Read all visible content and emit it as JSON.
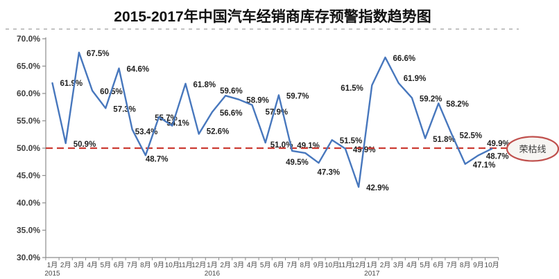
{
  "title": "2015-2017年中国汽车经销商库存预警指数趋势图",
  "chart_data": {
    "type": "line",
    "x": [
      "1月",
      "2月",
      "3月",
      "4月",
      "5月",
      "6月",
      "7月",
      "8月",
      "9月",
      "10月",
      "11月",
      "12月",
      "1月",
      "2月",
      "3月",
      "4月",
      "5月",
      "6月",
      "7月",
      "8月",
      "9月",
      "10月",
      "11月",
      "12月",
      "1月",
      "2月",
      "3月",
      "4月",
      "5月",
      "6月",
      "7月",
      "8月",
      "9月",
      "10月"
    ],
    "years": [
      {
        "label": "2015",
        "month_index": 0
      },
      {
        "label": "2016",
        "month_index": 12
      },
      {
        "label": "2017",
        "month_index": 24
      }
    ],
    "series": [
      {
        "name": "库存预警指数",
        "values": [
          61.9,
          50.9,
          67.5,
          60.5,
          57.3,
          64.6,
          53.4,
          48.7,
          55.7,
          54.1,
          61.8,
          52.6,
          56.6,
          59.6,
          58.9,
          57.9,
          51.0,
          59.7,
          49.5,
          49.1,
          47.3,
          51.5,
          49.9,
          42.9,
          61.5,
          66.6,
          61.9,
          59.2,
          51.8,
          58.2,
          52.5,
          47.1,
          48.7,
          49.9
        ]
      }
    ],
    "ylim": [
      30,
      70
    ],
    "y_tick_step": 5,
    "y_tick_format": "percent_one_decimal",
    "grid": "off",
    "legend": "none",
    "reference_line": {
      "value": 50.0,
      "label": "荣枯线"
    },
    "colors": {
      "line": "#4777BD",
      "reference_line": "#CC3B33",
      "ellipse_border": "#C0504D",
      "ellipse_fill": "#F7F5F2",
      "axis": "#8C8C8C",
      "separator": "#C2C2C2"
    }
  }
}
